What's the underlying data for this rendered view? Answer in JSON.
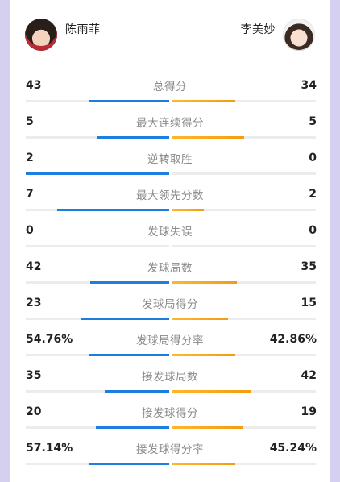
{
  "players": {
    "left": {
      "name": "陈雨菲",
      "avatar_icon": "player-portrait-icon"
    },
    "right": {
      "name": "李美妙",
      "avatar_icon": "player-portrait-icon"
    }
  },
  "colors": {
    "left_bar": "#1c7fe0",
    "right_bar": "#f5a623",
    "track": "#ececec",
    "background": "#d6d0f0"
  },
  "stats": [
    {
      "label": "总得分",
      "left": "43",
      "right": "34",
      "left_share": 0.56,
      "right_share": 0.44
    },
    {
      "label": "最大连续得分",
      "left": "5",
      "right": "5",
      "left_share": 0.5,
      "right_share": 0.5
    },
    {
      "label": "逆转取胜",
      "left": "2",
      "right": "0",
      "left_share": 1.0,
      "right_share": 0.0
    },
    {
      "label": "最大领先分数",
      "left": "7",
      "right": "2",
      "left_share": 0.78,
      "right_share": 0.22
    },
    {
      "label": "发球失误",
      "left": "0",
      "right": "0",
      "left_share": 0.0,
      "right_share": 0.0
    },
    {
      "label": "发球局数",
      "left": "42",
      "right": "35",
      "left_share": 0.55,
      "right_share": 0.45
    },
    {
      "label": "发球局得分",
      "left": "23",
      "right": "15",
      "left_share": 0.61,
      "right_share": 0.39
    },
    {
      "label": "发球局得分率",
      "left": "54.76%",
      "right": "42.86%",
      "left_share": 0.56,
      "right_share": 0.44
    },
    {
      "label": "接发球局数",
      "left": "35",
      "right": "42",
      "left_share": 0.45,
      "right_share": 0.55
    },
    {
      "label": "接发球得分",
      "left": "20",
      "right": "19",
      "left_share": 0.51,
      "right_share": 0.49
    },
    {
      "label": "接发球得分率",
      "left": "57.14%",
      "right": "45.24%",
      "left_share": 0.56,
      "right_share": 0.44
    }
  ]
}
